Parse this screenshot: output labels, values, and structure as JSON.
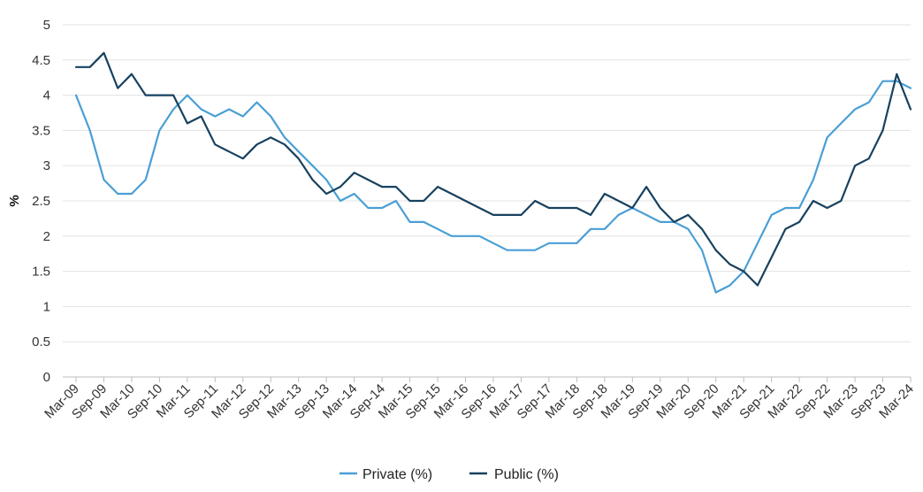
{
  "chart_data": {
    "type": "line",
    "title": "",
    "xlabel": "",
    "ylabel": "%",
    "ylim": [
      0,
      5
    ],
    "y_ticks": [
      "0",
      "0.5",
      "1",
      "1.5",
      "2",
      "2.5",
      "3",
      "3.5",
      "4",
      "4.5",
      "5"
    ],
    "grid": true,
    "legend_position": "bottom-center",
    "x_tick_labels": [
      "Mar-09",
      "Sep-09",
      "Mar-10",
      "Sep-10",
      "Mar-11",
      "Sep-11",
      "Mar-12",
      "Sep-12",
      "Mar-13",
      "Sep-13",
      "Mar-14",
      "Sep-14",
      "Mar-15",
      "Sep-15",
      "Mar-16",
      "Sep-16",
      "Mar-17",
      "Sep-17",
      "Mar-18",
      "Sep-18",
      "Mar-19",
      "Sep-19",
      "Mar-20",
      "Sep-20",
      "Mar-21",
      "Sep-21",
      "Mar-22",
      "Sep-22",
      "Mar-23",
      "Sep-23",
      "Mar-24"
    ],
    "series": [
      {
        "name": "Private (%)",
        "color": "#4a9fd5",
        "values": [
          4.0,
          3.5,
          2.8,
          2.6,
          2.6,
          2.8,
          3.5,
          3.8,
          4.0,
          3.8,
          3.7,
          3.8,
          3.7,
          3.9,
          3.7,
          3.4,
          3.2,
          3.0,
          2.8,
          2.5,
          2.6,
          2.4,
          2.4,
          2.5,
          2.2,
          2.2,
          2.1,
          2.0,
          2.0,
          2.0,
          1.9,
          1.8,
          1.8,
          1.8,
          1.9,
          1.9,
          1.9,
          2.1,
          2.1,
          2.3,
          2.4,
          2.3,
          2.2,
          2.2,
          2.1,
          1.8,
          1.2,
          1.3,
          1.5,
          1.9,
          2.3,
          2.4,
          2.4,
          2.8,
          3.4,
          3.6,
          3.8,
          3.9,
          4.2,
          4.2,
          4.1
        ]
      },
      {
        "name": "Public (%)",
        "color": "#17415f",
        "values": [
          4.4,
          4.4,
          4.6,
          4.1,
          4.3,
          4.0,
          4.0,
          4.0,
          3.6,
          3.7,
          3.3,
          3.2,
          3.1,
          3.3,
          3.4,
          3.3,
          3.1,
          2.8,
          2.6,
          2.7,
          2.9,
          2.8,
          2.7,
          2.7,
          2.5,
          2.5,
          2.7,
          2.6,
          2.5,
          2.4,
          2.3,
          2.3,
          2.3,
          2.5,
          2.4,
          2.4,
          2.4,
          2.3,
          2.6,
          2.5,
          2.4,
          2.7,
          2.4,
          2.2,
          2.3,
          2.1,
          1.8,
          1.6,
          1.5,
          1.3,
          1.7,
          2.1,
          2.2,
          2.5,
          2.4,
          2.5,
          3.0,
          3.1,
          3.5,
          4.3,
          3.8
        ]
      }
    ]
  }
}
